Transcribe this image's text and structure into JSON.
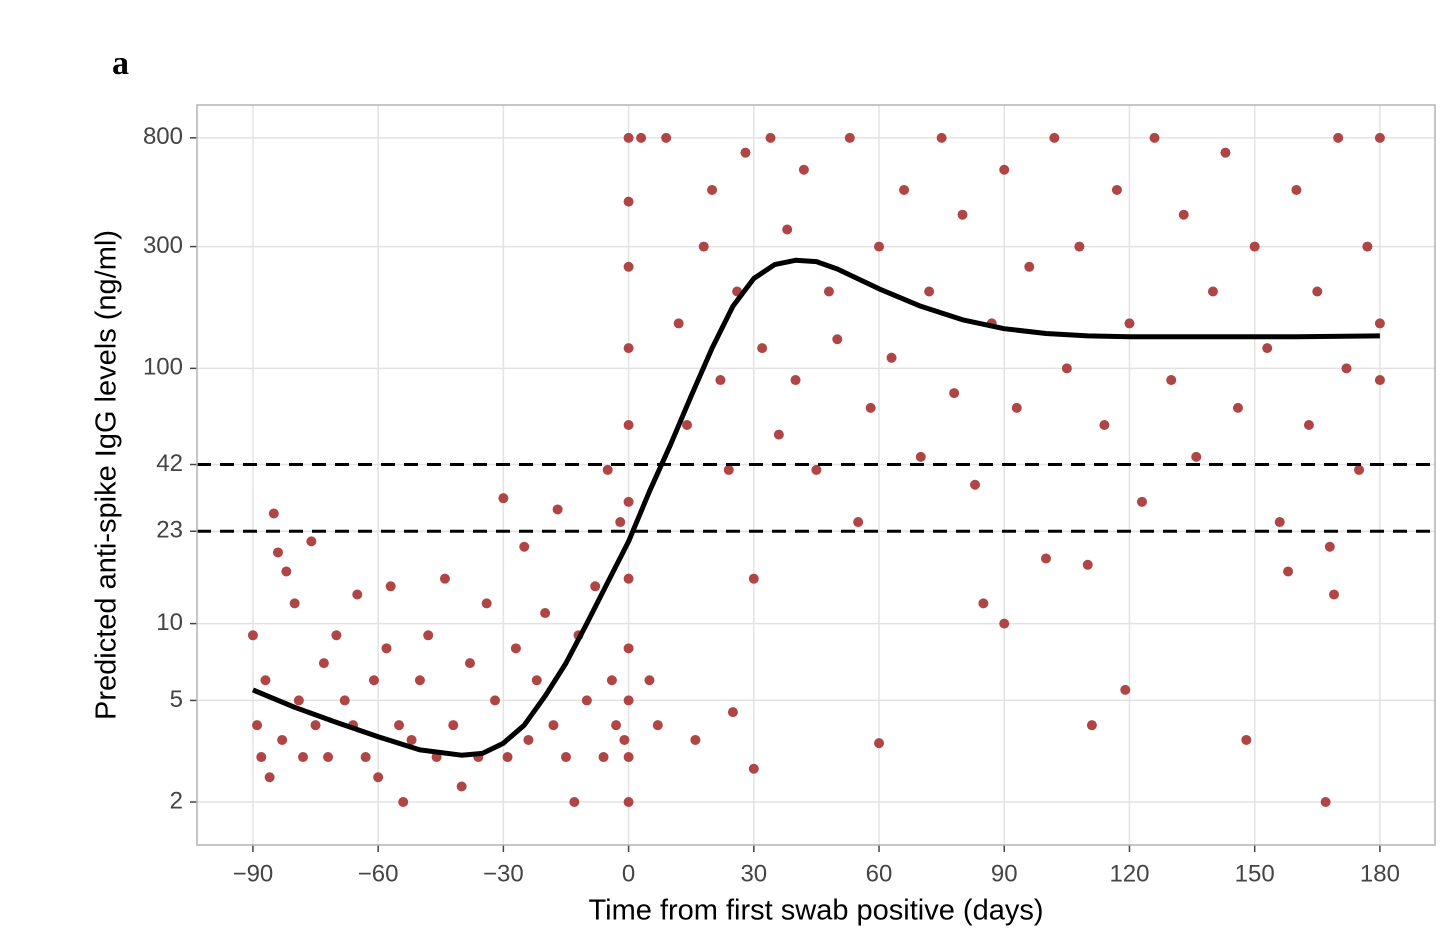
{
  "chart_data": {
    "type": "scatter",
    "panel_label": "a",
    "x_label": "Time from first swab positive (days)",
    "y_label": "Predicted anti-spike IgG levels (ng/ml)",
    "log_y": true,
    "grid": true,
    "xlim": [
      -103.4,
      193.2
    ],
    "ylim": [
      1.357,
      1076
    ],
    "xticks": [
      {
        "value": -90,
        "label": "−90"
      },
      {
        "value": -60,
        "label": "−60"
      },
      {
        "value": -30,
        "label": "−30"
      },
      0,
      30,
      60,
      90,
      120,
      150,
      180
    ],
    "yticks": [
      2,
      5,
      10,
      23,
      42,
      100,
      300,
      800
    ],
    "reference_lines": [
      42,
      23
    ],
    "points": {
      "color": "#b04545",
      "x": [
        -90,
        -89,
        -88,
        -87,
        -86,
        -85,
        -84,
        -83,
        -82,
        -80,
        -79,
        -78,
        -76,
        -75,
        -73,
        -72,
        -70,
        -68,
        -66,
        -65,
        -63,
        -61,
        -60,
        -58,
        -57,
        -55,
        -54,
        -52,
        -50,
        -48,
        -46,
        -44,
        -42,
        -40,
        -38,
        -36,
        -34,
        -32,
        -30,
        -29,
        -27,
        -25,
        -24,
        -22,
        -20,
        -18,
        -17,
        -15,
        -13,
        -12,
        -10,
        -8,
        -6,
        -5,
        -4,
        -3,
        -2,
        -1,
        0,
        0,
        0,
        0,
        0,
        0,
        0,
        0,
        0,
        0,
        0,
        3,
        5,
        7,
        9,
        12,
        14,
        16,
        18,
        20,
        22,
        24,
        25,
        26,
        28,
        30,
        30,
        32,
        34,
        36,
        38,
        40,
        42,
        45,
        48,
        50,
        53,
        55,
        58,
        60,
        60,
        63,
        66,
        70,
        72,
        75,
        78,
        80,
        83,
        85,
        87,
        90,
        90,
        93,
        96,
        100,
        102,
        105,
        108,
        110,
        111,
        114,
        117,
        119,
        120,
        123,
        126,
        130,
        133,
        136,
        140,
        143,
        146,
        148,
        150,
        153,
        156,
        158,
        160,
        163,
        165,
        167,
        168,
        169,
        170,
        172,
        175,
        177,
        180,
        180,
        180
      ],
      "y": [
        9,
        4,
        3,
        6,
        2.5,
        27,
        19,
        3.5,
        16,
        12,
        5,
        3,
        21,
        4,
        7,
        3,
        9,
        5,
        4,
        13,
        3,
        6,
        2.5,
        8,
        14,
        4,
        2,
        3.5,
        6,
        9,
        3,
        15,
        4,
        2.3,
        7,
        3,
        12,
        5,
        31,
        3,
        8,
        20,
        3.5,
        6,
        11,
        4,
        28,
        3,
        2,
        9,
        5,
        14,
        3,
        40,
        6,
        4,
        25,
        3.5,
        2,
        3,
        5,
        8,
        15,
        30,
        60,
        120,
        250,
        450,
        800,
        800,
        6,
        4,
        800,
        150,
        60,
        3.5,
        300,
        500,
        90,
        40,
        4.5,
        200,
        700,
        2.7,
        15,
        120,
        800,
        55,
        350,
        90,
        600,
        40,
        200,
        130,
        800,
        25,
        70,
        3.4,
        300,
        110,
        500,
        45,
        200,
        800,
        80,
        400,
        35,
        12,
        150,
        10,
        600,
        70,
        250,
        18,
        800,
        100,
        300,
        17,
        4,
        60,
        500,
        5.5,
        150,
        30,
        800,
        90,
        400,
        45,
        200,
        700,
        70,
        3.5,
        300,
        120,
        25,
        16,
        500,
        60,
        200,
        2,
        20,
        13,
        800,
        100,
        40,
        300,
        800,
        90,
        150
      ]
    },
    "curve": {
      "color": "#000000",
      "x": [
        -90,
        -80,
        -70,
        -60,
        -50,
        -40,
        -35,
        -30,
        -25,
        -20,
        -15,
        -10,
        -5,
        0,
        5,
        10,
        15,
        20,
        25,
        30,
        35,
        40,
        45,
        50,
        60,
        70,
        80,
        90,
        100,
        110,
        120,
        140,
        160,
        180
      ],
      "y": [
        5.5,
        4.7,
        4.1,
        3.6,
        3.2,
        3.05,
        3.1,
        3.4,
        4,
        5.2,
        7,
        10,
        14.5,
        21,
        33,
        50,
        78,
        120,
        175,
        225,
        255,
        265,
        262,
        245,
        205,
        175,
        155,
        143,
        137,
        134,
        133,
        133,
        133,
        134
      ]
    }
  }
}
